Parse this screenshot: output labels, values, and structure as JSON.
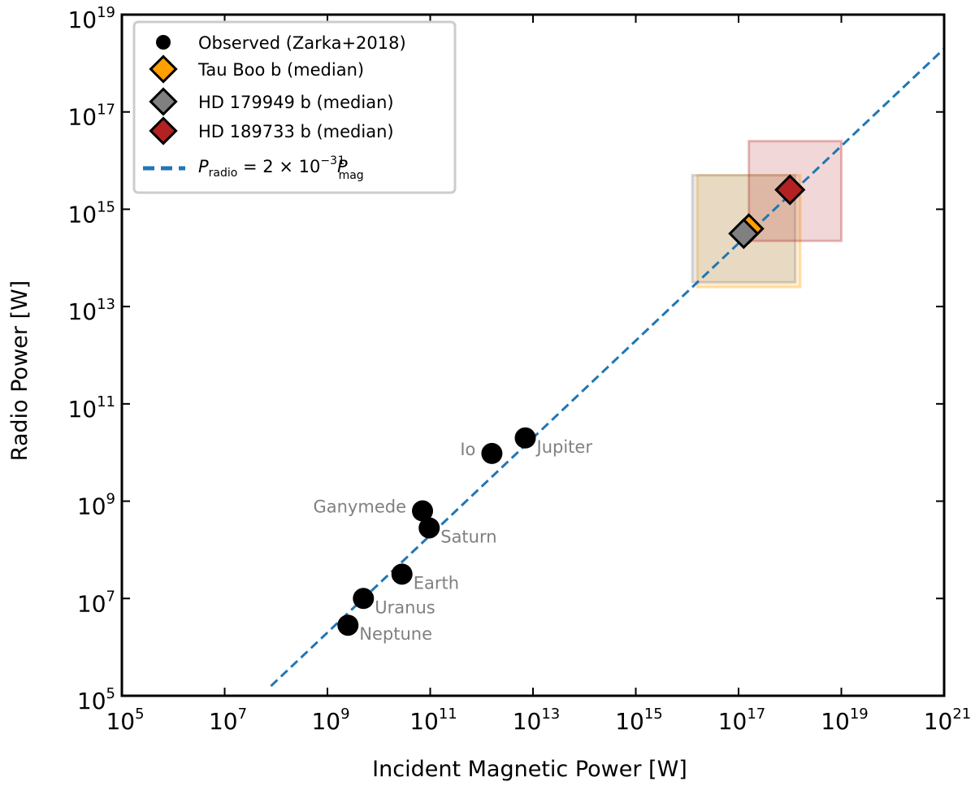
{
  "chart_data": {
    "type": "scatter",
    "xscale": "log",
    "yscale": "log",
    "xlabel": "Incident Magnetic Power [W]",
    "ylabel": "Radio Power [W]",
    "xlim_exp": [
      5,
      21
    ],
    "ylim_exp": [
      5,
      19
    ],
    "xticks_exp": [
      "5",
      "7",
      "9",
      "11",
      "13",
      "15",
      "17",
      "19",
      "21"
    ],
    "yticks_exp": [
      "5",
      "7",
      "9",
      "11",
      "13",
      "15",
      "17",
      "19"
    ],
    "tick_base": "10",
    "observed": {
      "legend": "Observed (Zarka+2018)",
      "points": [
        {
          "name": "Io",
          "log_x": 12.2,
          "log_y": 9.98,
          "label_side": "left"
        },
        {
          "name": "Jupiter",
          "log_x": 12.85,
          "log_y": 10.3,
          "label_side": "right"
        },
        {
          "name": "Ganymede",
          "log_x": 10.85,
          "log_y": 8.8,
          "label_side": "left"
        },
        {
          "name": "Saturn",
          "log_x": 10.98,
          "log_y": 8.45,
          "label_side": "right"
        },
        {
          "name": "Earth",
          "log_x": 10.45,
          "log_y": 7.5,
          "label_side": "right"
        },
        {
          "name": "Uranus",
          "log_x": 9.7,
          "log_y": 7.0,
          "label_side": "right"
        },
        {
          "name": "Neptune",
          "log_x": 9.4,
          "log_y": 6.45,
          "label_side": "right"
        }
      ]
    },
    "planets": [
      {
        "legend": "Tau Boo b (median)",
        "color": "#ff9f00",
        "log_x": 17.2,
        "log_y": 14.6,
        "box_log_x": [
          16.2,
          18.2
        ],
        "box_log_y": [
          13.4,
          15.7
        ]
      },
      {
        "legend": "HD 179949 b (median)",
        "color": "#808080",
        "log_x": 17.1,
        "log_y": 14.5,
        "box_log_x": [
          16.1,
          18.1
        ],
        "box_log_y": [
          13.5,
          15.7
        ]
      },
      {
        "legend": "HD 189733 b (median)",
        "color": "#b22222",
        "log_x": 18.0,
        "log_y": 15.4,
        "box_log_x": [
          17.2,
          19.0
        ],
        "box_log_y": [
          14.35,
          16.4
        ]
      }
    ],
    "fit": {
      "legend_main": "P",
      "legend_main_sub": "radio",
      "legend_mid": " = 2 × 10",
      "legend_exp": "−3",
      "legend_p2": "P",
      "legend_p2_sup": "1",
      "legend_p2_sub": "mag",
      "coef_log": -2.7,
      "slope": 1,
      "log_x_range": [
        7.9,
        21
      ],
      "color": "#1f77b4"
    }
  }
}
